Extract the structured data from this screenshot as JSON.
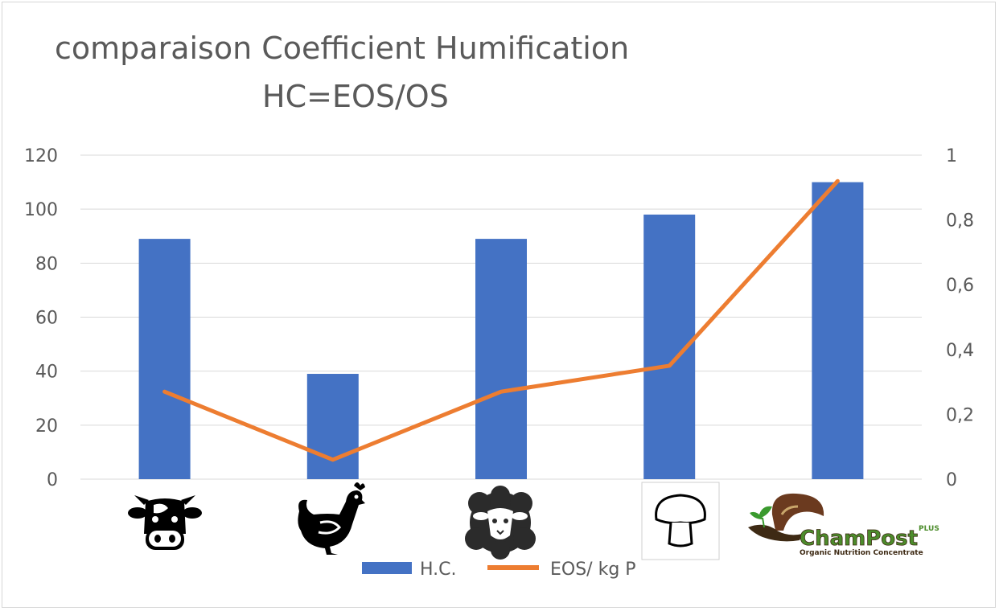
{
  "title_line1": "comparaison Coefficient Humification",
  "title_line2": "HC=EOS/OS",
  "colors": {
    "bar": "#4472C4",
    "line": "#ED7D31",
    "grid": "#d9d9d9",
    "text": "#595959"
  },
  "chart_data": {
    "type": "bar",
    "title": "comparaison Coefficient Humification HC=EOS/OS",
    "categories": [
      "cow-icon",
      "chicken-icon",
      "sheep-icon",
      "mushroom-icon",
      "champost-logo"
    ],
    "y_left": {
      "ylim": [
        0,
        120
      ],
      "ticks": [
        "0",
        "20",
        "40",
        "60",
        "80",
        "100",
        "120"
      ]
    },
    "y_right": {
      "ylim": [
        0,
        1
      ],
      "ticks": [
        "0",
        "0,2",
        "0,4",
        "0,6",
        "0,8",
        "1"
      ]
    },
    "series": [
      {
        "name": "H.C.",
        "type": "bar",
        "axis": "left",
        "values": [
          89,
          39,
          89,
          98,
          110
        ]
      },
      {
        "name": "EOS/ kg P",
        "type": "line",
        "axis": "right",
        "values": [
          0.27,
          0.06,
          0.27,
          0.35,
          0.92
        ]
      }
    ],
    "grid": true,
    "legend": "bottom"
  },
  "logo": {
    "brand": "ChamPost",
    "superscript": "PLUS",
    "tagline": "Organic Nutrition Concentrate"
  }
}
